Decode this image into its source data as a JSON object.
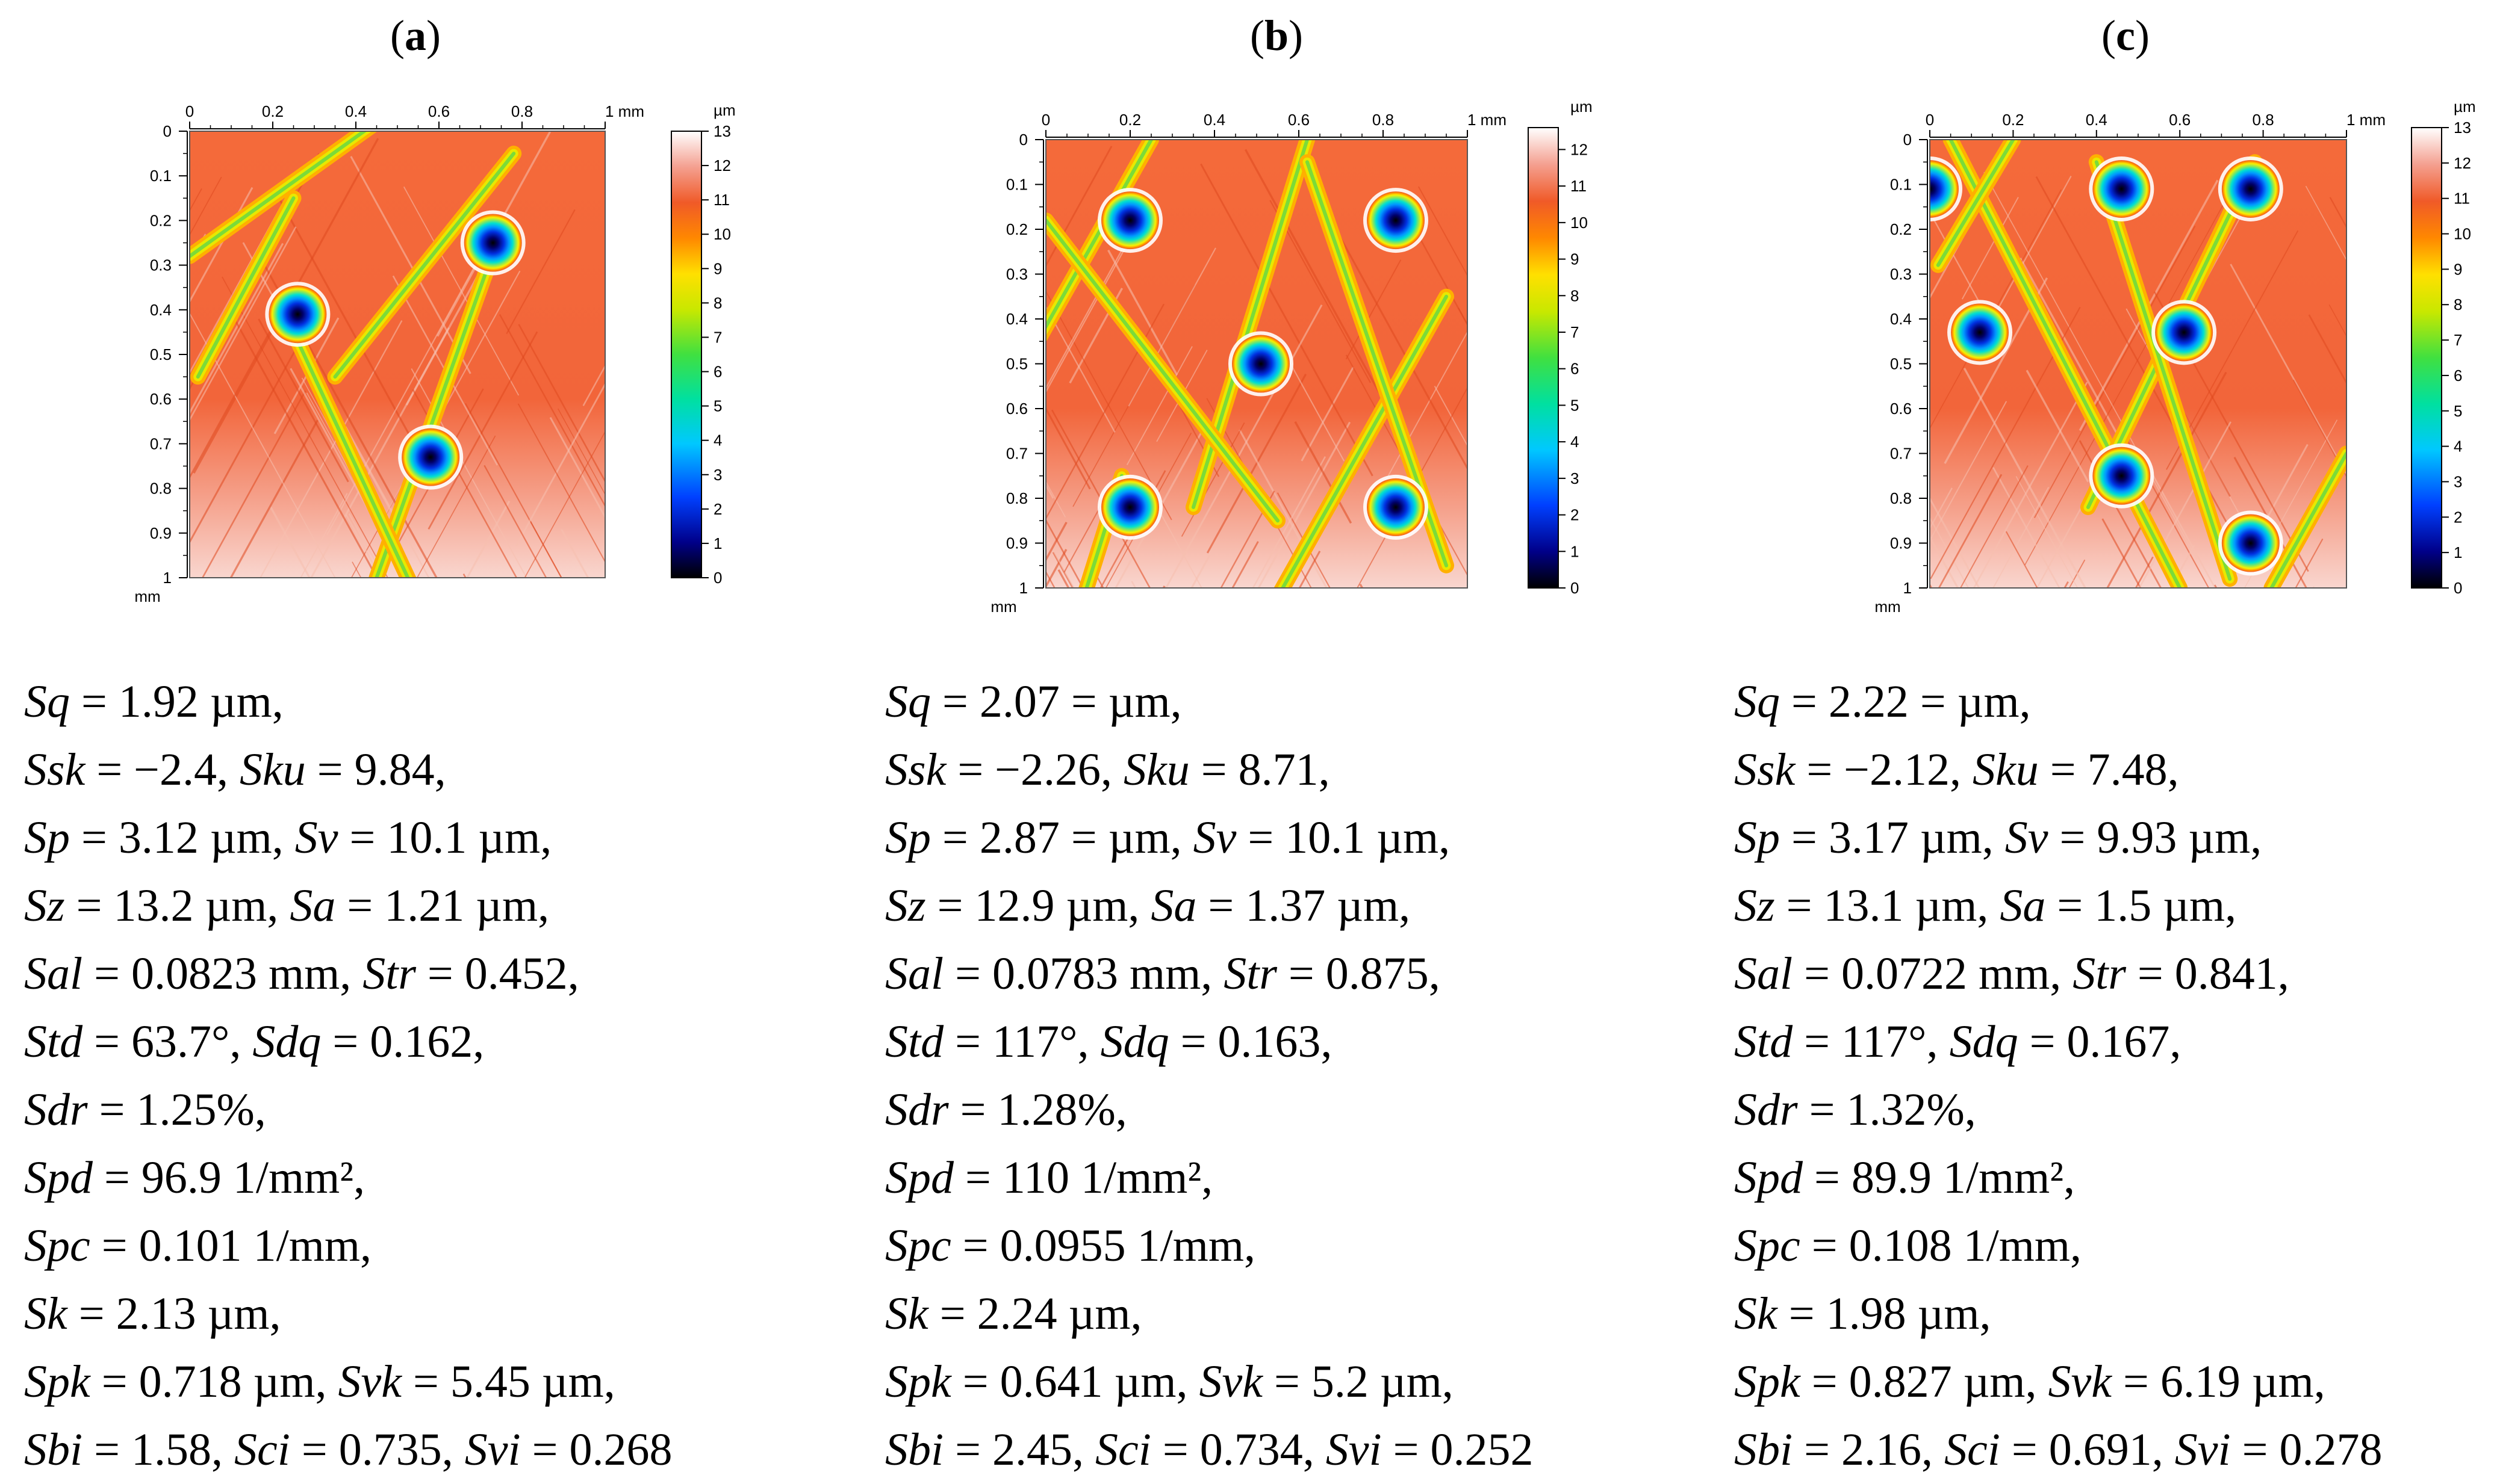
{
  "panels": [
    {
      "label": "a",
      "x_ticks": [
        "0",
        "0.2",
        "0.4",
        "0.6",
        "0.8",
        "1 mm"
      ],
      "y_ticks": [
        "0",
        "0.1",
        "0.2",
        "0.3",
        "0.4",
        "0.5",
        "0.6",
        "0.7",
        "0.8",
        "0.9",
        "1"
      ],
      "y_unit": "mm",
      "colorbar_unit": "µm",
      "colorbar_ticks": [
        "0",
        "1",
        "2",
        "3",
        "4",
        "5",
        "6",
        "7",
        "8",
        "9",
        "10",
        "11",
        "12",
        "13"
      ],
      "dimples": [
        [
          0.26,
          0.41
        ],
        [
          0.73,
          0.25
        ],
        [
          0.58,
          0.73
        ]
      ],
      "params": [
        [
          {
            "n": "Sq",
            "v": " = 1.92 µm,"
          }
        ],
        [
          {
            "n": "Ssk",
            "v": " = −2.4, "
          },
          {
            "n": "Sku",
            "v": " = 9.84,"
          }
        ],
        [
          {
            "n": "Sp",
            "v": " = 3.12 µm, "
          },
          {
            "n": "Sv",
            "v": " = 10.1 µm,"
          }
        ],
        [
          {
            "n": "Sz",
            "v": " = 13.2 µm, "
          },
          {
            "n": "Sa",
            "v": " = 1.21 µm,"
          }
        ],
        [
          {
            "n": "Sal",
            "v": " = 0.0823 mm, "
          },
          {
            "n": "Str",
            "v": " = 0.452,"
          }
        ],
        [
          {
            "n": "Std",
            "v": " = 63.7°, "
          },
          {
            "n": "Sdq",
            "v": " = 0.162,"
          }
        ],
        [
          {
            "n": "Sdr",
            "v": " = 1.25%,"
          }
        ],
        [
          {
            "n": "Spd",
            "v": " = 96.9 1/mm²,"
          }
        ],
        [
          {
            "n": "Spc",
            "v": " = 0.101 1/mm,"
          }
        ],
        [
          {
            "n": "Sk",
            "v": " = 2.13 µm,"
          }
        ],
        [
          {
            "n": "Spk",
            "v": " = 0.718 µm, "
          },
          {
            "n": "Svk",
            "v": " = 5.45 µm,"
          }
        ],
        [
          {
            "n": "Sbi",
            "v": " = 1.58, "
          },
          {
            "n": "Sci",
            "v": " = 0.735, "
          },
          {
            "n": "Svi",
            "v": " = 0.268"
          }
        ]
      ]
    },
    {
      "label": "b",
      "x_ticks": [
        "0",
        "0.2",
        "0.4",
        "0.6",
        "0.8",
        "1 mm"
      ],
      "y_ticks": [
        "0",
        "0.1",
        "0.2",
        "0.3",
        "0.4",
        "0.5",
        "0.6",
        "0.7",
        "0.8",
        "0.9",
        "1"
      ],
      "y_unit": "mm",
      "colorbar_unit": "µm",
      "colorbar_ticks": [
        "0",
        "1",
        "2",
        "3",
        "4",
        "5",
        "6",
        "7",
        "8",
        "9",
        "10",
        "11",
        "12"
      ],
      "dimples": [
        [
          0.2,
          0.18
        ],
        [
          0.83,
          0.18
        ],
        [
          0.51,
          0.5
        ],
        [
          0.2,
          0.82
        ],
        [
          0.83,
          0.82
        ]
      ],
      "params": [
        [
          {
            "n": "Sq",
            "v": " = 2.07 = µm,"
          }
        ],
        [
          {
            "n": "Ssk",
            "v": " = −2.26, "
          },
          {
            "n": "Sku",
            "v": " = 8.71,"
          }
        ],
        [
          {
            "n": "Sp",
            "v": " = 2.87 = µm, "
          },
          {
            "n": "Sv",
            "v": " = 10.1 µm,"
          }
        ],
        [
          {
            "n": "Sz",
            "v": " = 12.9 µm, "
          },
          {
            "n": "Sa",
            "v": " = 1.37 µm,"
          }
        ],
        [
          {
            "n": "Sal",
            "v": " = 0.0783 mm, "
          },
          {
            "n": "Str",
            "v": " = 0.875,"
          }
        ],
        [
          {
            "n": "Std",
            "v": " = 117°, "
          },
          {
            "n": "Sdq",
            "v": " = 0.163,"
          }
        ],
        [
          {
            "n": "Sdr",
            "v": " = 1.28%,"
          }
        ],
        [
          {
            "n": "Spd",
            "v": " = 110 1/mm²,"
          }
        ],
        [
          {
            "n": "Spc",
            "v": " = 0.0955 1/mm,"
          }
        ],
        [
          {
            "n": "Sk",
            "v": " = 2.24 µm,"
          }
        ],
        [
          {
            "n": "Spk",
            "v": " = 0.641 µm, "
          },
          {
            "n": "Svk",
            "v": " = 5.2 µm,"
          }
        ],
        [
          {
            "n": "Sbi",
            "v": " = 2.45, "
          },
          {
            "n": "Sci",
            "v": " = 0.734, "
          },
          {
            "n": "Svi",
            "v": " = 0.252"
          }
        ]
      ]
    },
    {
      "label": "c",
      "x_ticks": [
        "0",
        "0.2",
        "0.4",
        "0.6",
        "0.8",
        "1 mm"
      ],
      "y_ticks": [
        "0",
        "0.1",
        "0.2",
        "0.3",
        "0.4",
        "0.5",
        "0.6",
        "0.7",
        "0.8",
        "0.9",
        "1"
      ],
      "y_unit": "mm",
      "colorbar_unit": "µm",
      "colorbar_ticks": [
        "0",
        "1",
        "2",
        "3",
        "4",
        "5",
        "6",
        "7",
        "8",
        "9",
        "10",
        "11",
        "12",
        "13"
      ],
      "dimples": [
        [
          0.0,
          0.11
        ],
        [
          0.46,
          0.11
        ],
        [
          0.77,
          0.11
        ],
        [
          0.12,
          0.43
        ],
        [
          0.61,
          0.43
        ],
        [
          0.46,
          0.75
        ],
        [
          0.77,
          0.9
        ]
      ],
      "params": [
        [
          {
            "n": "Sq",
            "v": " = 2.22 = µm,"
          }
        ],
        [
          {
            "n": "Ssk",
            "v": " = −2.12, "
          },
          {
            "n": "Sku",
            "v": " = 7.48,"
          }
        ],
        [
          {
            "n": "Sp",
            "v": " = 3.17 µm, "
          },
          {
            "n": "Sv",
            "v": " = 9.93 µm,"
          }
        ],
        [
          {
            "n": "Sz",
            "v": " = 13.1 µm, "
          },
          {
            "n": "Sa",
            "v": " = 1.5 µm,"
          }
        ],
        [
          {
            "n": "Sal",
            "v": " = 0.0722 mm, "
          },
          {
            "n": "Str",
            "v": " = 0.841,"
          }
        ],
        [
          {
            "n": "Std",
            "v": " = 117°, "
          },
          {
            "n": "Sdq",
            "v": " = 0.167,"
          }
        ],
        [
          {
            "n": "Sdr",
            "v": " = 1.32%,"
          }
        ],
        [
          {
            "n": "Spd",
            "v": " = 89.9 1/mm²,"
          }
        ],
        [
          {
            "n": "Spc",
            "v": " = 0.108 1/mm,"
          }
        ],
        [
          {
            "n": "Sk",
            "v": " = 1.98 µm,"
          }
        ],
        [
          {
            "n": "Spk",
            "v": " = 0.827 µm, "
          },
          {
            "n": "Svk",
            "v": " = 6.19 µm,"
          }
        ],
        [
          {
            "n": "Sbi",
            "v": " = 2.16, "
          },
          {
            "n": "Sci",
            "v": " = 0.691, "
          },
          {
            "n": "Svi",
            "v": " = 0.278"
          }
        ]
      ]
    }
  ]
}
